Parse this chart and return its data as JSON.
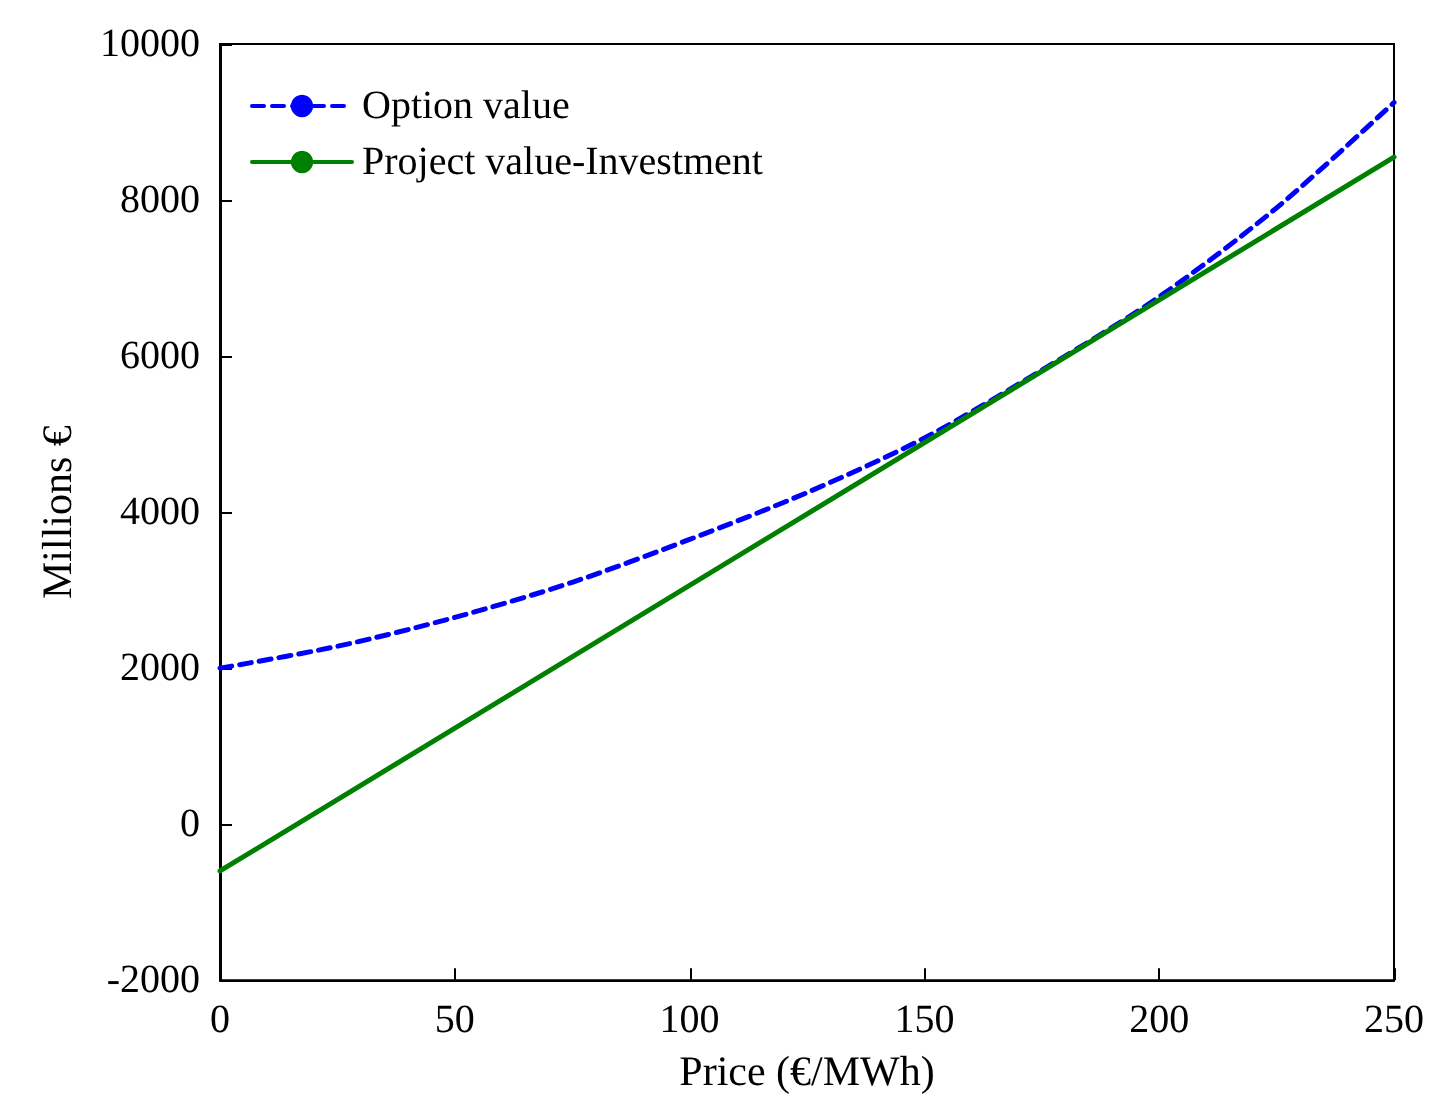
{
  "chart_data": {
    "type": "line",
    "xlabel": "Price (€/MWh)",
    "ylabel": "Millions €",
    "xlim": [
      0,
      250
    ],
    "xticks": [
      0,
      50,
      100,
      150,
      200,
      250
    ],
    "ylim": [
      -2000,
      10000
    ],
    "yticks": [
      -2000,
      0,
      2000,
      4000,
      6000,
      8000,
      10000
    ],
    "grid": false,
    "legend": "top left",
    "marker": "none",
    "series": [
      {
        "name": "Option value",
        "color": "#0000ff",
        "line_style": "dashed",
        "x": [
          0,
          25,
          50,
          75,
          100,
          125,
          150,
          175,
          200,
          225,
          250
        ],
        "values": [
          2000,
          2280,
          2650,
          3100,
          3650,
          4250,
          4950,
          5820,
          6760,
          7900,
          9250
        ]
      },
      {
        "name": "Project value-Investment",
        "color": "#008000",
        "line_style": "solid",
        "x": [
          0,
          250
        ],
        "values": [
          -600,
          8550
        ]
      }
    ]
  }
}
